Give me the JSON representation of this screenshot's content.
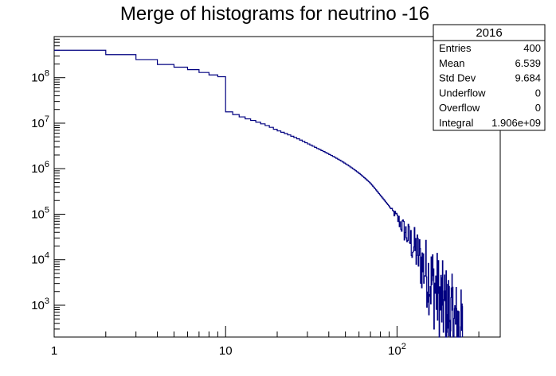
{
  "chart_data": {
    "type": "histogram",
    "title": "Merge of histograms for neutrino -16",
    "xlabel": "",
    "ylabel": "",
    "x_scale": "log",
    "y_scale": "log",
    "xlim": [
      1,
      400
    ],
    "ylim": [
      200,
      800000000
    ],
    "grid": false,
    "line_color": "#000080",
    "x_tick_labels": [
      {
        "value": 1,
        "base": "1",
        "exp": ""
      },
      {
        "value": 10,
        "base": "10",
        "exp": ""
      },
      {
        "value": 100,
        "base": "10",
        "exp": "2"
      }
    ],
    "y_tick_labels": [
      {
        "value": 1000,
        "base": "10",
        "exp": "3"
      },
      {
        "value": 10000,
        "base": "10",
        "exp": "4"
      },
      {
        "value": 100000,
        "base": "10",
        "exp": "5"
      },
      {
        "value": 1000000,
        "base": "10",
        "exp": "6"
      },
      {
        "value": 10000000,
        "base": "10",
        "exp": "7"
      },
      {
        "value": 100000000,
        "base": "10",
        "exp": "8"
      }
    ],
    "anchors": [
      [
        1,
        400000000
      ],
      [
        2,
        320000000
      ],
      [
        3,
        250000000
      ],
      [
        4,
        195000000
      ],
      [
        5,
        170000000
      ],
      [
        6,
        150000000
      ],
      [
        7,
        130000000
      ],
      [
        8,
        115000000
      ],
      [
        9,
        105000000
      ],
      [
        10,
        19000000
      ],
      [
        11,
        16500000
      ],
      [
        12,
        14500000
      ],
      [
        13,
        13000000
      ],
      [
        15,
        11000000
      ],
      [
        18,
        8500000
      ],
      [
        20,
        7000000
      ],
      [
        25,
        5000000
      ],
      [
        30,
        3600000
      ],
      [
        35,
        2700000
      ],
      [
        40,
        2100000
      ],
      [
        50,
        1300000
      ],
      [
        60,
        800000
      ],
      [
        70,
        480000
      ],
      [
        80,
        260000
      ],
      [
        90,
        150000
      ],
      [
        100,
        85000
      ],
      [
        110,
        45000
      ],
      [
        120,
        25000
      ],
      [
        130,
        15000
      ],
      [
        140,
        8000
      ],
      [
        150,
        5000
      ],
      [
        160,
        3000
      ],
      [
        170,
        2000
      ],
      [
        180,
        1200
      ],
      [
        200,
        700
      ],
      [
        220,
        400
      ],
      [
        240,
        250
      ],
      [
        260,
        180
      ]
    ],
    "noise_start": 90,
    "last_bin": 240
  },
  "stats_box": {
    "title": "2016",
    "rows": [
      {
        "label": "Entries",
        "value": "400"
      },
      {
        "label": "Mean",
        "value": "6.539"
      },
      {
        "label": "Std Dev",
        "value": "9.684"
      },
      {
        "label": "Underflow",
        "value": "0"
      },
      {
        "label": "Overflow",
        "value": "0"
      },
      {
        "label": "Integral",
        "value": "1.906e+09"
      }
    ]
  }
}
